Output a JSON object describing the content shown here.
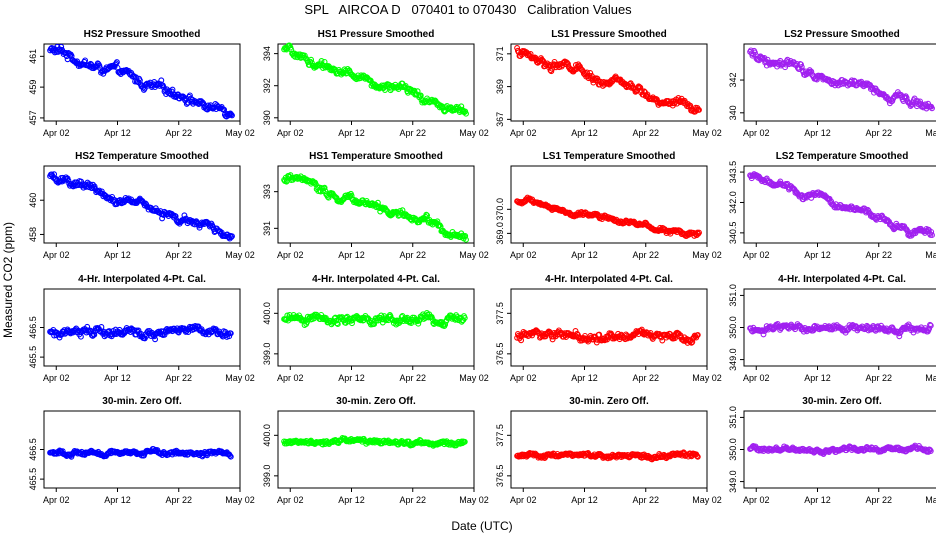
{
  "figure": {
    "title": "SPL   AIRCOA D   070401 to 070430   Calibration Values",
    "ylabel": "Measured CO2 (ppm)",
    "xlabel": "Date (UTC)"
  },
  "chart_data": {
    "type": "scatter",
    "x_range_days": [
      -1,
      31
    ],
    "x_tick_days": [
      1,
      11,
      21,
      31
    ],
    "x_tick_labels": [
      "Apr 02",
      "Apr 12",
      "Apr 22",
      "May 02"
    ],
    "panels": [
      {
        "id": "p00",
        "row": 0,
        "col": 0,
        "title": "HS2 Pressure Smoothed",
        "color": "#0000ff",
        "ylim": [
          456.8,
          461.8
        ],
        "yticks": [
          457,
          459,
          461
        ],
        "ytick_labels": [
          "457",
          "459",
          "461"
        ],
        "trend": "linear",
        "y_start": 461.4,
        "y_end": 457.3,
        "noise": 0.35,
        "x_start": 0.0,
        "x_end": 29.7
      },
      {
        "id": "p01",
        "row": 0,
        "col": 1,
        "title": "HS1 Pressure Smoothed",
        "color": "#00ff00",
        "ylim": [
          389.8,
          394.6
        ],
        "yticks": [
          390,
          392,
          394
        ],
        "ytick_labels": [
          "390",
          "392",
          "394"
        ],
        "trend": "linear",
        "y_start": 394.1,
        "y_end": 390.3,
        "noise": 0.3,
        "x_start": 0.0,
        "x_end": 29.7
      },
      {
        "id": "p02",
        "row": 0,
        "col": 2,
        "title": "LS1 Pressure Smoothed",
        "color": "#ff0000",
        "ylim": [
          366.9,
          371.6
        ],
        "yticks": [
          367,
          369,
          371
        ],
        "ytick_labels": [
          "367",
          "369",
          "371"
        ],
        "trend": "linear",
        "y_start": 371.1,
        "y_end": 367.5,
        "noise": 0.3,
        "x_start": 0.0,
        "x_end": 29.7
      },
      {
        "id": "p03",
        "row": 0,
        "col": 3,
        "title": "LS2 Pressure Smoothed",
        "color": "#a020f0",
        "ylim": [
          339.5,
          344.2
        ],
        "yticks": [
          340,
          342
        ],
        "ytick_labels": [
          "340",
          "342"
        ],
        "trend": "linear",
        "y_start": 343.7,
        "y_end": 340.3,
        "noise": 0.3,
        "x_start": 0.0,
        "x_end": 29.7
      },
      {
        "id": "p10",
        "row": 1,
        "col": 0,
        "title": "HS2 Temperature Smoothed",
        "color": "#0000ff",
        "ylim": [
          457.5,
          462.0
        ],
        "yticks": [
          458,
          460
        ],
        "ytick_labels": [
          "458",
          "460"
        ],
        "trend": "linear",
        "y_start": 461.4,
        "y_end": 457.9,
        "noise": 0.25,
        "x_start": 0.0,
        "x_end": 29.7
      },
      {
        "id": "p11",
        "row": 1,
        "col": 1,
        "title": "HS1 Temperature Smoothed",
        "color": "#00ff00",
        "ylim": [
          390.2,
          394.4
        ],
        "yticks": [
          391,
          393
        ],
        "ytick_labels": [
          "391",
          "393"
        ],
        "trend": "linear",
        "y_start": 393.8,
        "y_end": 390.6,
        "noise": 0.25,
        "x_start": 0.0,
        "x_end": 29.7
      },
      {
        "id": "p12",
        "row": 1,
        "col": 2,
        "title": "LS1 Temperature Smoothed",
        "color": "#ff0000",
        "ylim": [
          368.6,
          371.8
        ],
        "yticks": [
          369.0,
          370.0
        ],
        "ytick_labels": [
          "369.0",
          "370.0"
        ],
        "trend": "linear",
        "y_start": 370.35,
        "y_end": 368.9,
        "noise": 0.12,
        "x_start": 0.0,
        "x_end": 29.7
      },
      {
        "id": "p13",
        "row": 1,
        "col": 3,
        "title": "LS2 Temperature Smoothed",
        "color": "#a020f0",
        "ylim": [
          340.0,
          343.8
        ],
        "yticks": [
          340.5,
          342.0,
          343.5
        ],
        "ytick_labels": [
          "340.5",
          "342.0",
          "343.5"
        ],
        "trend": "linear",
        "y_start": 343.4,
        "y_end": 340.3,
        "noise": 0.2,
        "x_start": 0.0,
        "x_end": 29.7
      },
      {
        "id": "p20",
        "row": 2,
        "col": 0,
        "title": "4-Hr. Interpolated 4-Pt. Cal.",
        "color": "#0000ff",
        "ylim": [
          465.2,
          467.8
        ],
        "yticks": [
          465.5,
          466.5
        ],
        "ytick_labels": [
          "465.5",
          "466.5"
        ],
        "trend": "flat",
        "y_start": 466.4,
        "y_end": 466.4,
        "noise": 0.18,
        "x_start": 0.0,
        "x_end": 29.5
      },
      {
        "id": "p21",
        "row": 2,
        "col": 1,
        "title": "4-Hr. Interpolated 4-Pt. Cal.",
        "color": "#00ff00",
        "ylim": [
          398.7,
          400.6
        ],
        "yticks": [
          399.0,
          400.0
        ],
        "ytick_labels": [
          "399.0",
          "400.0"
        ],
        "trend": "flat",
        "y_start": 399.85,
        "y_end": 399.85,
        "noise": 0.12,
        "x_start": 0.0,
        "x_end": 29.5
      },
      {
        "id": "p22",
        "row": 2,
        "col": 2,
        "title": "4-Hr. Interpolated 4-Pt. Cal.",
        "color": "#ff0000",
        "ylim": [
          376.2,
          378.1
        ],
        "yticks": [
          376.5,
          377.5
        ],
        "ytick_labels": [
          "376.5",
          "377.5"
        ],
        "trend": "flat",
        "y_start": 376.95,
        "y_end": 376.95,
        "noise": 0.12,
        "x_start": 0.0,
        "x_end": 29.5
      },
      {
        "id": "p23",
        "row": 2,
        "col": 3,
        "title": "4-Hr. Interpolated 4-Pt. Cal.",
        "color": "#a020f0",
        "ylim": [
          348.8,
          351.2
        ],
        "yticks": [
          349.0,
          350.0,
          351.0
        ],
        "ytick_labels": [
          "349.0",
          "350.0",
          "351.0"
        ],
        "trend": "flat",
        "y_start": 350.0,
        "y_end": 350.0,
        "noise": 0.14,
        "x_start": 0.0,
        "x_end": 29.5
      },
      {
        "id": "p30",
        "row": 3,
        "col": 0,
        "title": "30-min. Zero Off.",
        "color": "#0000ff",
        "ylim": [
          465.2,
          467.8
        ],
        "yticks": [
          465.5,
          466.5
        ],
        "ytick_labels": [
          "465.5",
          "466.5"
        ],
        "trend": "flat",
        "y_start": 466.38,
        "y_end": 466.38,
        "noise": 0.1,
        "x_start": 0.0,
        "x_end": 29.5
      },
      {
        "id": "p31",
        "row": 3,
        "col": 1,
        "title": "30-min. Zero Off.",
        "color": "#00ff00",
        "ylim": [
          398.7,
          400.6
        ],
        "yticks": [
          399.0,
          400.0
        ],
        "ytick_labels": [
          "399.0",
          "400.0"
        ],
        "trend": "flat",
        "y_start": 399.82,
        "y_end": 399.82,
        "noise": 0.07,
        "x_start": 0.0,
        "x_end": 29.5
      },
      {
        "id": "p32",
        "row": 3,
        "col": 2,
        "title": "30-min. Zero Off.",
        "color": "#ff0000",
        "ylim": [
          376.2,
          378.1
        ],
        "yticks": [
          376.5,
          377.5
        ],
        "ytick_labels": [
          "376.5",
          "377.5"
        ],
        "trend": "flat",
        "y_start": 377.0,
        "y_end": 377.0,
        "noise": 0.07,
        "x_start": 0.0,
        "x_end": 29.5
      },
      {
        "id": "p33",
        "row": 3,
        "col": 3,
        "title": "30-min. Zero Off.",
        "color": "#a020f0",
        "ylim": [
          348.8,
          351.2
        ],
        "yticks": [
          349.0,
          350.0,
          351.0
        ],
        "ytick_labels": [
          "349.0",
          "350.0",
          "351.0"
        ],
        "trend": "flat",
        "y_start": 350.0,
        "y_end": 350.0,
        "noise": 0.08,
        "x_start": 0.0,
        "x_end": 29.5
      }
    ]
  }
}
